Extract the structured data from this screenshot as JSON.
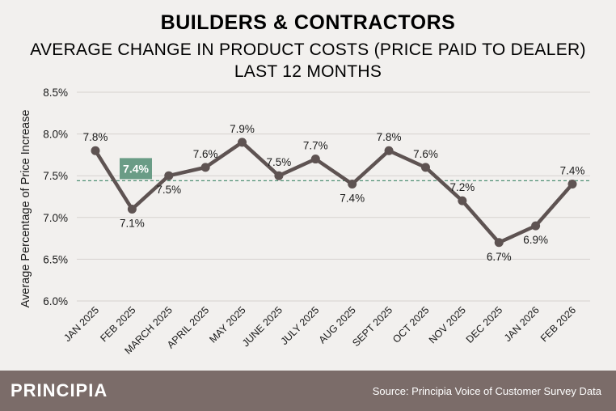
{
  "header": {
    "title": "BUILDERS & CONTRACTORS",
    "subtitle_line1": "AVERAGE CHANGE IN PRODUCT COSTS (PRICE PAID TO DEALER)",
    "subtitle_line2": "LAST 12 MONTHS"
  },
  "footer": {
    "brand": "PRINCIPIA",
    "source": "Source: Principia Voice of Customer Survey Data"
  },
  "colors": {
    "line": "#5e5352",
    "average_line": "#4e8f73",
    "average_box": "#6a9c86",
    "gridline": "#d6d2cf",
    "background": "#f2f0ee",
    "footer": "#7b6c69"
  },
  "chart_data": {
    "type": "line",
    "title": "BUILDERS & CONTRACTORS",
    "xlabel": "",
    "ylabel": "Average Percentage of Price Increase",
    "categories": [
      "JAN 2025",
      "FEB 2025",
      "MARCH 2025",
      "APRIL 2025",
      "MAY 2025",
      "JUNE 2025",
      "JULY 2025",
      "AUG 2025",
      "SEPT 2025",
      "OCT 2025",
      "NOV 2025",
      "DEC 2025",
      "JAN 2026",
      "FEB 2026"
    ],
    "series": [
      {
        "name": "Average change in product costs",
        "values": [
          7.8,
          7.1,
          7.5,
          7.6,
          7.9,
          7.5,
          7.7,
          7.4,
          7.8,
          7.6,
          7.2,
          6.7,
          6.9,
          7.4
        ],
        "labels": [
          "7.8%",
          "7.1%",
          "7.5%",
          "7.6%",
          "7.9%",
          "7.5%",
          "7.7%",
          "7.4%",
          "7.8%",
          "7.6%",
          "7.2%",
          "6.7%",
          "6.9%",
          "7.4%"
        ],
        "label_positions": [
          "above",
          "below",
          "below",
          "above",
          "above",
          "above",
          "above",
          "below",
          "above",
          "above",
          "above",
          "below",
          "below",
          "above"
        ]
      }
    ],
    "average": {
      "value": 7.44,
      "label": "7.4%"
    },
    "ylim": [
      6.0,
      8.5
    ],
    "yticks": [
      6.0,
      6.5,
      7.0,
      7.5,
      8.0,
      8.5
    ],
    "ytick_labels": [
      "6.0%",
      "6.5%",
      "7.0%",
      "7.5%",
      "8.0%",
      "8.5%"
    ],
    "grid": true
  }
}
